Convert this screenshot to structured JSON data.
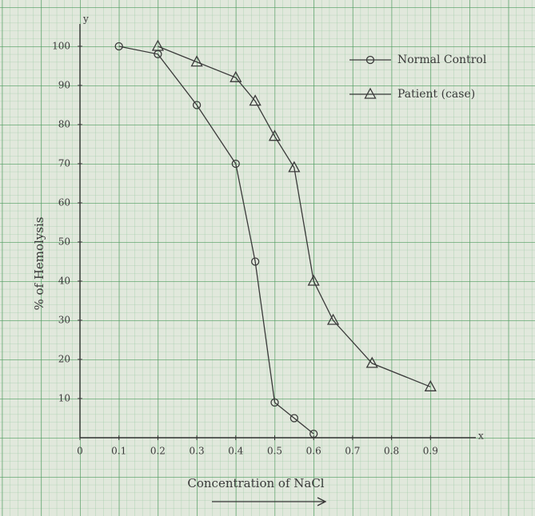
{
  "chart_data": {
    "type": "line",
    "x_axis_label": "Concentration of NaCl",
    "y_axis_label": "% of Hemolysis",
    "x_axis_letter": "x",
    "y_axis_letter": "y",
    "xlim": [
      0,
      1.0
    ],
    "ylim": [
      0,
      104
    ],
    "xticks": [
      0,
      0.1,
      0.2,
      0.3,
      0.4,
      0.5,
      0.6,
      0.7,
      0.8,
      0.9
    ],
    "yticks": [
      10,
      20,
      30,
      40,
      50,
      60,
      70,
      80,
      90,
      100
    ],
    "legend": "top-right",
    "series": [
      {
        "name": "Normal Control",
        "color": "#3a3a3a",
        "marker": "circle",
        "x": [
          0.1,
          0.2,
          0.3,
          0.4,
          0.45,
          0.5,
          0.55,
          0.6
        ],
        "values": [
          100,
          98,
          85,
          70,
          45,
          9,
          5,
          1
        ]
      },
      {
        "name": "Patient (case)",
        "color": "#3a3a3a",
        "marker": "triangle",
        "x": [
          0.2,
          0.3,
          0.4,
          0.45,
          0.5,
          0.55,
          0.6,
          0.65,
          0.75,
          0.9
        ],
        "values": [
          100,
          96,
          92,
          86,
          77,
          69,
          40,
          30,
          19,
          13
        ]
      }
    ]
  }
}
